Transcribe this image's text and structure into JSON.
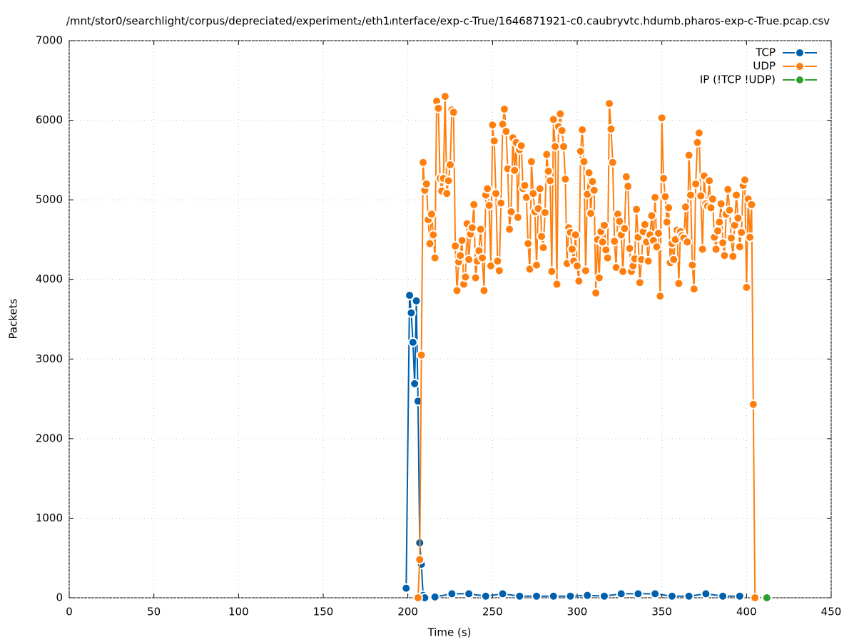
{
  "chart_data": {
    "type": "line",
    "title": "/mnt/stor0/searchlight/corpus/depreciated/experiment₂/eth1ᵢnterface/exp-c-True/1646871921-c0.caubryvtc.hdumb.pharos-exp-c-True.pcap.csv",
    "xlabel": "Time (s)",
    "ylabel": "Packets",
    "xlim": [
      0,
      450
    ],
    "xticks": [
      0,
      50,
      100,
      150,
      200,
      250,
      300,
      350,
      400,
      450
    ],
    "ylim": [
      0,
      7000
    ],
    "yticks": [
      0,
      1000,
      2000,
      3000,
      4000,
      5000,
      6000,
      7000
    ],
    "grid": true,
    "legend": "top-right",
    "series": [
      {
        "name": "TCP",
        "color": "#0060ad",
        "x": [
          199,
          201,
          202,
          203,
          204,
          205,
          206,
          207,
          208,
          209,
          210,
          216,
          226,
          236,
          246,
          256,
          266,
          276,
          286,
          296,
          306,
          316,
          326,
          336,
          346,
          356,
          366,
          376,
          386,
          396
        ],
        "values": [
          120,
          3800,
          3580,
          3210,
          2690,
          3730,
          2470,
          690,
          420,
          30,
          0,
          10,
          50,
          50,
          20,
          50,
          20,
          20,
          20,
          20,
          30,
          20,
          50,
          50,
          50,
          20,
          20,
          50,
          20,
          20
        ]
      },
      {
        "name": "UDP",
        "color": "#ff7f0e",
        "x": [
          206,
          207,
          208,
          209,
          210,
          211,
          212,
          213,
          214,
          215,
          216,
          217,
          218,
          219,
          220,
          221,
          222,
          223,
          224,
          225,
          226,
          227,
          228,
          229,
          230,
          231,
          232,
          233,
          234,
          235,
          236,
          237,
          238,
          239,
          240,
          241,
          242,
          243,
          244,
          245,
          246,
          247,
          248,
          249,
          250,
          251,
          252,
          253,
          254,
          255,
          256,
          257,
          258,
          259,
          260,
          261,
          262,
          263,
          264,
          265,
          266,
          267,
          268,
          269,
          270,
          271,
          272,
          273,
          274,
          275,
          276,
          277,
          278,
          279,
          280,
          281,
          282,
          283,
          284,
          285,
          286,
          287,
          288,
          289,
          290,
          291,
          292,
          293,
          294,
          295,
          296,
          297,
          298,
          299,
          300,
          301,
          302,
          303,
          304,
          305,
          306,
          307,
          308,
          309,
          310,
          311,
          312,
          313,
          314,
          315,
          316,
          317,
          318,
          319,
          320,
          321,
          322,
          323,
          324,
          325,
          326,
          327,
          328,
          329,
          330,
          331,
          332,
          333,
          334,
          335,
          336,
          337,
          338,
          339,
          340,
          341,
          342,
          343,
          344,
          345,
          346,
          347,
          348,
          349,
          350,
          351,
          352,
          353,
          354,
          355,
          356,
          357,
          358,
          359,
          360,
          361,
          362,
          363,
          364,
          365,
          366,
          367,
          368,
          369,
          370,
          371,
          372,
          373,
          374,
          375,
          376,
          377,
          378,
          379,
          380,
          381,
          382,
          383,
          384,
          385,
          386,
          387,
          388,
          389,
          390,
          391,
          392,
          393,
          394,
          395,
          396,
          397,
          398,
          399,
          400,
          401,
          402,
          403,
          404,
          405
        ],
        "values": [
          0,
          480,
          3050,
          5470,
          5120,
          5200,
          4750,
          4450,
          4820,
          4560,
          4270,
          6240,
          6150,
          5270,
          5110,
          5270,
          6300,
          5080,
          5240,
          5440,
          6130,
          6100,
          4420,
          3860,
          4220,
          4300,
          4490,
          3940,
          4030,
          4700,
          4250,
          4570,
          4650,
          4940,
          4020,
          4230,
          4360,
          4630,
          4270,
          3860,
          5060,
          5140,
          4930,
          4170,
          5940,
          5740,
          5080,
          4230,
          4110,
          4960,
          5950,
          6140,
          5860,
          5390,
          4630,
          4850,
          5780,
          5370,
          5720,
          4780,
          5630,
          5680,
          5140,
          5180,
          5030,
          4450,
          4130,
          5480,
          5080,
          4850,
          4180,
          4890,
          5140,
          4540,
          4400,
          4840,
          5570,
          5360,
          5240,
          4100,
          6010,
          5670,
          3940,
          5920,
          6080,
          5870,
          5670,
          5260,
          4200,
          4650,
          4590,
          4380,
          4230,
          4560,
          4170,
          3980,
          5610,
          5880,
          5480,
          4110,
          5070,
          5340,
          4830,
          5230,
          5120,
          3830,
          4500,
          4020,
          4600,
          4470,
          4680,
          4370,
          4270,
          6210,
          5890,
          5470,
          4480,
          4150,
          4820,
          4730,
          4560,
          4100,
          4640,
          5290,
          5170,
          4390,
          4100,
          4170,
          4260,
          4880,
          4530,
          3960,
          4250,
          4600,
          4690,
          4470,
          4230,
          4560,
          4800,
          4490,
          5030,
          4410,
          4580,
          3790,
          6030,
          5270,
          5040,
          4720,
          4900,
          4210,
          4450,
          4250,
          4500,
          4620,
          3950,
          4600,
          4550,
          4520,
          4910,
          4470,
          5560,
          5060,
          4180,
          3880,
          5200,
          5720,
          5840,
          5050,
          4380,
          5300,
          4950,
          4920,
          5240,
          4900,
          5010,
          4530,
          4380,
          4610,
          4720,
          4950,
          4460,
          4300,
          4820,
          5130,
          4870,
          4520,
          4290,
          4680,
          5060,
          4770,
          4410,
          4590,
          5180,
          5250,
          3900,
          5010,
          4530,
          4940,
          2430,
          0
        ]
      },
      {
        "name": "IP (!TCP  !UDP)",
        "color": "#2ca02c",
        "x": [
          412
        ],
        "values": [
          0
        ]
      }
    ]
  }
}
